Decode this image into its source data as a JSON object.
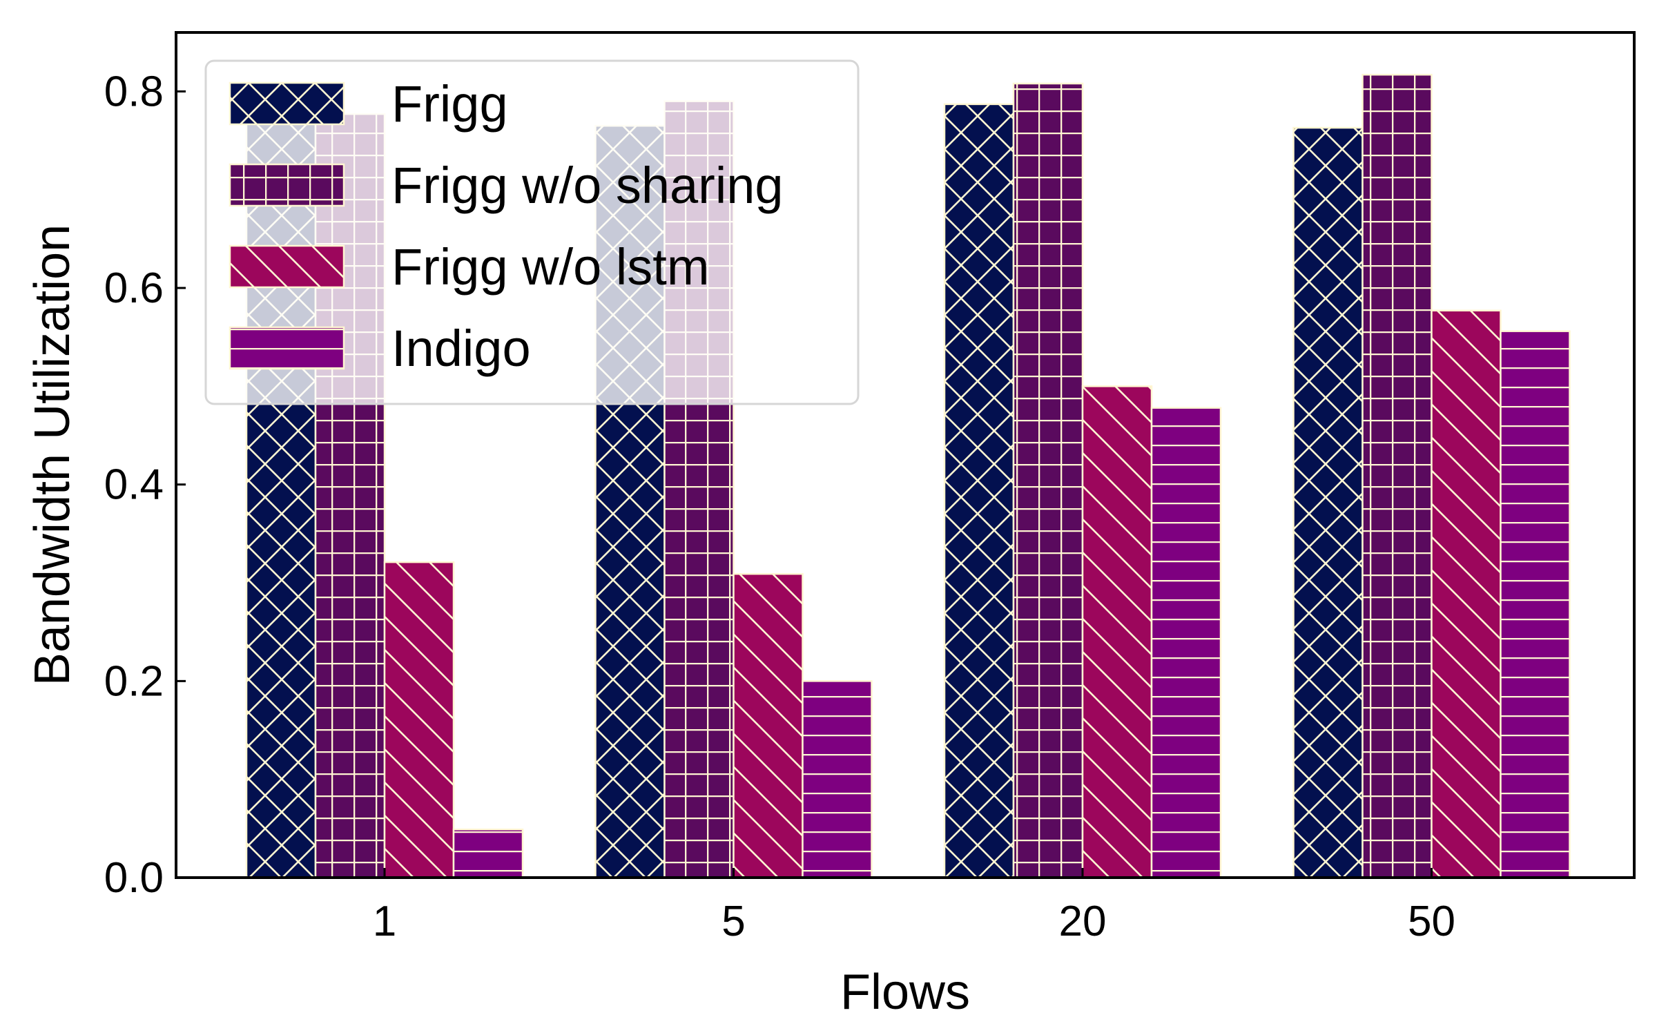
{
  "chart_data": {
    "type": "bar",
    "title": "",
    "xlabel": "Flows",
    "ylabel": "Bandwidth Utilization",
    "categories": [
      "1",
      "5",
      "20",
      "50"
    ],
    "ylim": [
      0,
      0.86
    ],
    "yticks": [
      "0.0",
      "0.2",
      "0.4",
      "0.6",
      "0.8"
    ],
    "grid": false,
    "legend_position": "top-left",
    "series": [
      {
        "name": "Frigg",
        "values": [
          0.77,
          0.765,
          0.787,
          0.763
        ],
        "color": "#03104f",
        "hatch": "cross-diagonal"
      },
      {
        "name": "Frigg w/o sharing",
        "values": [
          0.777,
          0.79,
          0.808,
          0.817
        ],
        "color": "#5a0a5e",
        "hatch": "grid"
      },
      {
        "name": "Frigg w/o lstm",
        "values": [
          0.321,
          0.309,
          0.5,
          0.577
        ],
        "color": "#9c065c",
        "hatch": "backslash"
      },
      {
        "name": "Indigo",
        "values": [
          0.049,
          0.2,
          0.478,
          0.556
        ],
        "color": "#7e0080",
        "hatch": "horizontal"
      }
    ]
  }
}
